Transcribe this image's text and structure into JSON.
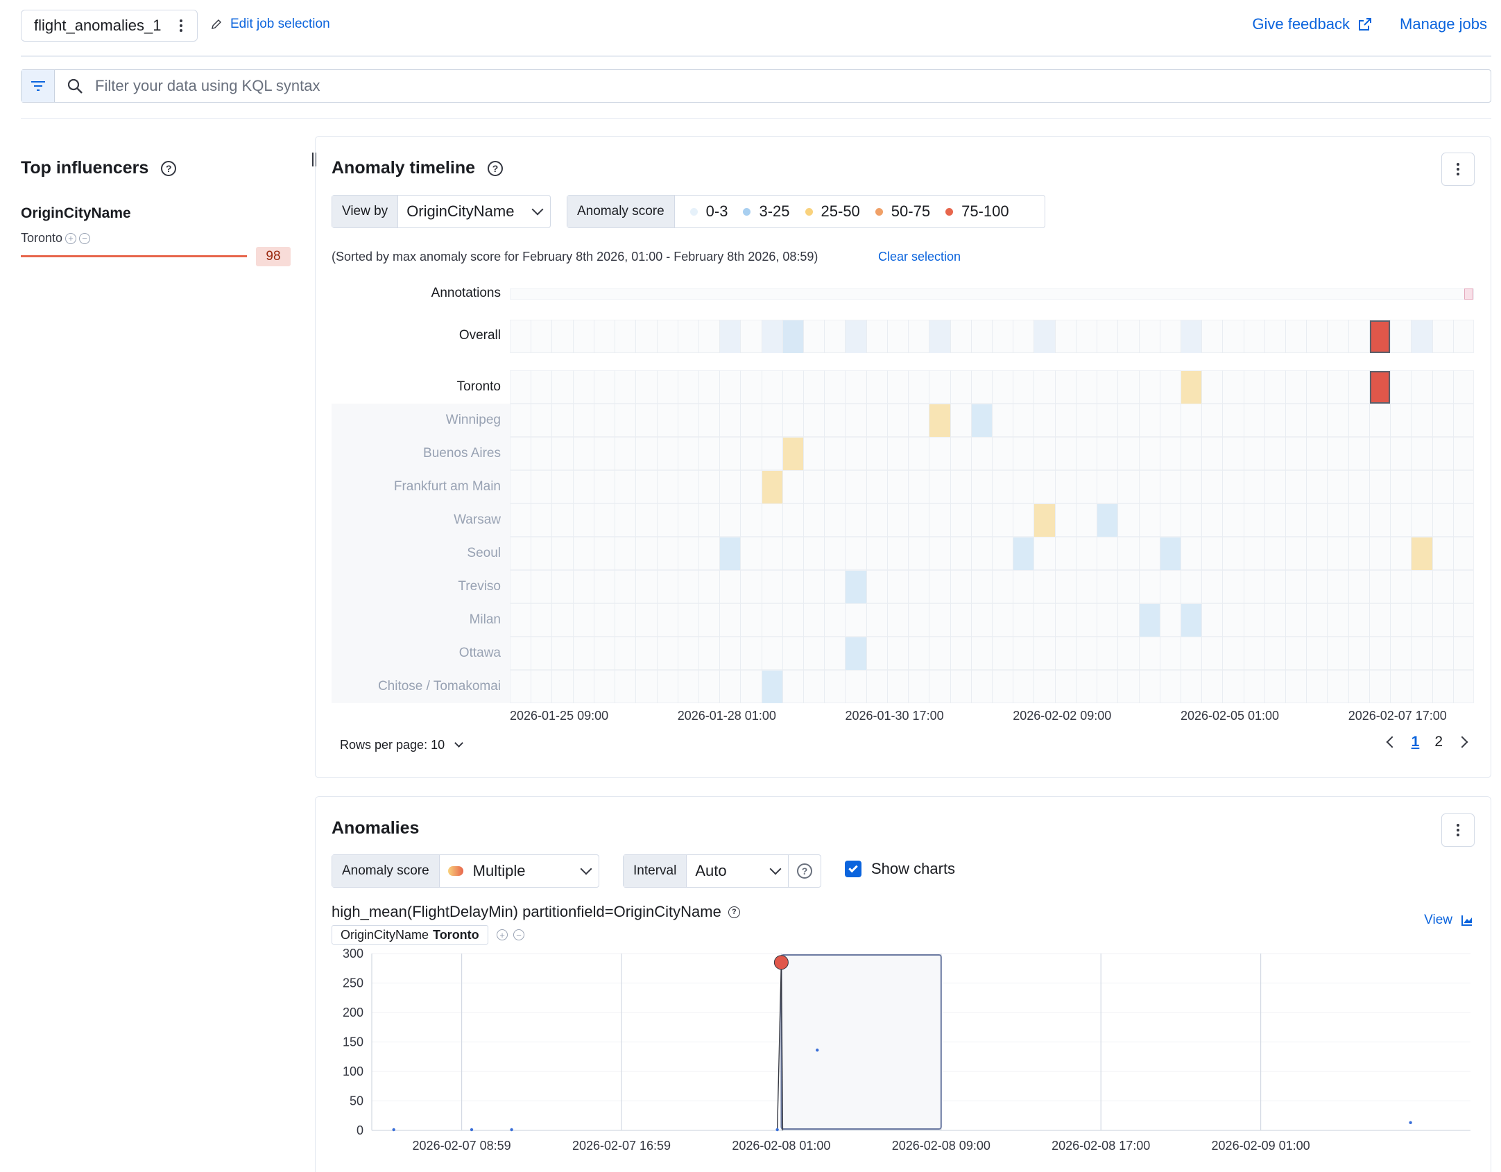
{
  "header": {
    "job_name": "flight_anomalies_1",
    "edit_job_label": "Edit job selection",
    "give_feedback_label": "Give feedback",
    "manage_jobs_label": "Manage jobs"
  },
  "search": {
    "placeholder": "Filter your data using KQL syntax"
  },
  "influencers": {
    "title": "Top influencers",
    "field": "OriginCityName",
    "items": [
      {
        "value": "Toronto",
        "score": "98",
        "score_fraction": 0.98
      }
    ]
  },
  "timeline": {
    "title": "Anomaly timeline",
    "view_by_label": "View by",
    "view_by_value": "OriginCityName",
    "score_label": "Anomaly score",
    "legend": [
      {
        "label": "0-3",
        "color": "#e6f1fa"
      },
      {
        "label": "3-25",
        "color": "#a8cff0"
      },
      {
        "label": "25-50",
        "color": "#f9d27d"
      },
      {
        "label": "50-75",
        "color": "#f0a067"
      },
      {
        "label": "75-100",
        "color": "#e7664c"
      }
    ],
    "sorted_text": "(Sorted by max anomaly score for February 8th 2026, 01:00 - February 8th 2026, 08:59)",
    "clear_selection_label": "Clear selection",
    "annotations_label": "Annotations",
    "overall_label": "Overall",
    "column_count": 46,
    "overall_cells": [
      {
        "col": 10,
        "level": "low"
      },
      {
        "col": 12,
        "level": "low"
      },
      {
        "col": 13,
        "level": "mid"
      },
      {
        "col": 16,
        "level": "low"
      },
      {
        "col": 20,
        "level": "low"
      },
      {
        "col": 25,
        "level": "low"
      },
      {
        "col": 32,
        "level": "low"
      },
      {
        "col": 41,
        "level": "critical",
        "selected": true
      },
      {
        "col": 43,
        "level": "low"
      }
    ],
    "rows": [
      {
        "label": "Toronto",
        "cells": [
          {
            "col": 32,
            "level": "warning"
          },
          {
            "col": 41,
            "level": "critical",
            "selected": true
          }
        ]
      },
      {
        "label": "Winnipeg",
        "cells": [
          {
            "col": 20,
            "level": "warning"
          },
          {
            "col": 22,
            "level": "minor"
          }
        ]
      },
      {
        "label": "Buenos Aires",
        "cells": [
          {
            "col": 13,
            "level": "warning"
          }
        ]
      },
      {
        "label": "Frankfurt am Main",
        "cells": [
          {
            "col": 12,
            "level": "warning"
          }
        ]
      },
      {
        "label": "Warsaw",
        "cells": [
          {
            "col": 25,
            "level": "warning"
          },
          {
            "col": 28,
            "level": "minor"
          }
        ]
      },
      {
        "label": "Seoul",
        "cells": [
          {
            "col": 10,
            "level": "minor"
          },
          {
            "col": 24,
            "level": "minor"
          },
          {
            "col": 31,
            "level": "minor"
          },
          {
            "col": 43,
            "level": "warning"
          }
        ]
      },
      {
        "label": "Treviso",
        "cells": [
          {
            "col": 16,
            "level": "minor"
          }
        ]
      },
      {
        "label": "Milan",
        "cells": [
          {
            "col": 30,
            "level": "minor"
          },
          {
            "col": 32,
            "level": "minor"
          }
        ]
      },
      {
        "label": "Ottawa",
        "cells": [
          {
            "col": 16,
            "level": "minor"
          }
        ]
      },
      {
        "label": "Chitose / Tomakomai",
        "cells": [
          {
            "col": 12,
            "level": "minor"
          }
        ]
      }
    ],
    "x_ticks": [
      {
        "label": "2026-01-25 09:00",
        "col": 0
      },
      {
        "label": "2026-01-28 01:00",
        "col": 8
      },
      {
        "label": "2026-01-30 17:00",
        "col": 16
      },
      {
        "label": "2026-02-02 09:00",
        "col": 24
      },
      {
        "label": "2026-02-05 01:00",
        "col": 32
      },
      {
        "label": "2026-02-07 17:00",
        "col": 40
      }
    ],
    "rows_per_page_label": "Rows per page: 10",
    "pages": [
      "1",
      "2"
    ],
    "current_page": "1"
  },
  "anomalies": {
    "title": "Anomalies",
    "score_label": "Anomaly score",
    "score_value": "Multiple",
    "interval_label": "Interval",
    "interval_value": "Auto",
    "show_charts_label": "Show charts",
    "detector": "high_mean(FlightDelayMin) partitionfield=OriginCityName",
    "entity_field": "OriginCityName",
    "entity_value": "Toronto",
    "view_label": "View"
  },
  "chart_data": {
    "type": "line",
    "title": "",
    "xlabel": "",
    "ylabel": "",
    "ylim": [
      0,
      300
    ],
    "y_ticks": [
      0,
      50,
      100,
      150,
      200,
      250,
      300
    ],
    "x_ticks": [
      "2026-02-07 08:59",
      "2026-02-07 16:59",
      "2026-02-08 01:00",
      "2026-02-08 09:00",
      "2026-02-08 17:00",
      "2026-02-09 01:00"
    ],
    "x_domain_hours": [
      -4.5,
      50.5
    ],
    "series": [
      {
        "points": [
          {
            "t_hours": -3.4,
            "y": 0
          },
          {
            "t_hours": 0.5,
            "y": 0
          },
          {
            "t_hours": 2.5,
            "y": 0
          },
          {
            "t_hours": 15.8,
            "y": 0
          },
          {
            "t_hours": 16.0,
            "y": 285,
            "anomaly": true
          },
          {
            "t_hours": 17.8,
            "y": 135
          },
          {
            "t_hours": 47.5,
            "y": 12
          }
        ]
      }
    ],
    "selection_hours": [
      16.0,
      24.0
    ],
    "grid": true,
    "legend": "none"
  }
}
